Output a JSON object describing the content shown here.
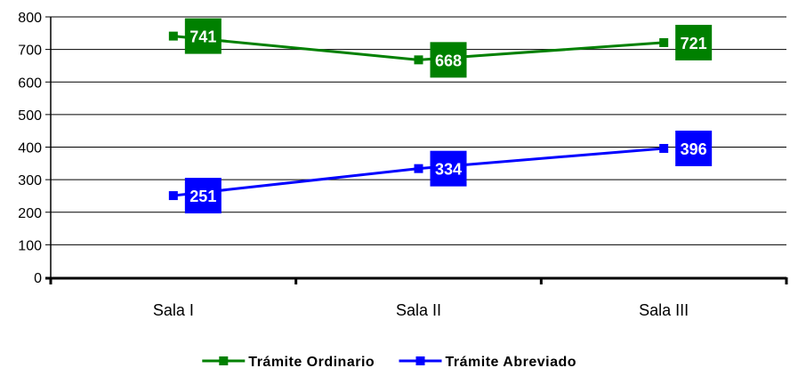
{
  "chart_data": {
    "type": "line",
    "categories": [
      "Sala I",
      "Sala II",
      "Sala III"
    ],
    "series": [
      {
        "name": "Trámite Ordinario",
        "values": [
          741,
          668,
          721
        ],
        "color": "#008000"
      },
      {
        "name": "Trámite Abreviado",
        "values": [
          251,
          334,
          396
        ],
        "color": "#0000FF"
      }
    ],
    "ylim": [
      0,
      800
    ],
    "yticks": [
      0,
      100,
      200,
      300,
      400,
      500,
      600,
      700,
      800
    ],
    "grid": true,
    "legend": "bottom",
    "title": "",
    "xlabel": "",
    "ylabel": ""
  }
}
